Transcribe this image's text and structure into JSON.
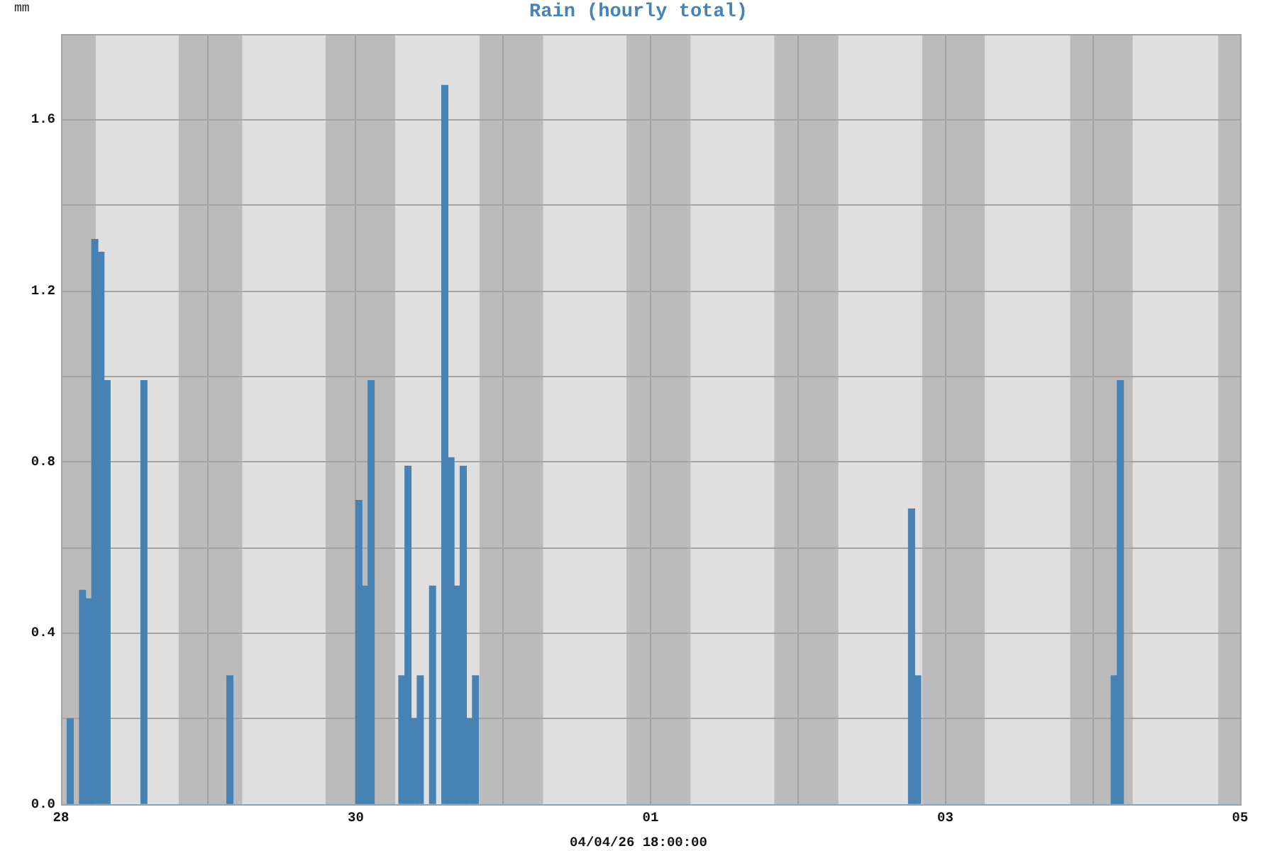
{
  "chart_data": {
    "type": "bar",
    "title": "Rain (hourly total)",
    "ylabel": "mm",
    "xlabel": "04/04/26 18:00:00",
    "x": [
      "--03-28T01:30",
      "--03-28T03:30",
      "--03-28T04:30",
      "--03-28T05:30",
      "--03-28T06:30",
      "--03-28T07:30",
      "--03-28T13:30",
      "--03-29T03:30",
      "--03-30T00:30",
      "--03-30T01:30",
      "--03-30T02:30",
      "--03-30T07:30",
      "--03-30T08:30",
      "--03-30T09:30",
      "--03-30T10:30",
      "--03-30T12:30",
      "--03-30T14:30",
      "--03-30T15:30",
      "--03-30T16:30",
      "--03-30T17:30",
      "--03-30T18:30",
      "--03-30T19:30",
      "--04-02T18:30",
      "--04-02T19:30",
      "--04-04T03:30",
      "--04-04T04:30"
    ],
    "values": [
      0.2,
      0.5,
      0.48,
      1.32,
      1.29,
      0.99,
      0.99,
      0.3,
      0.71,
      0.51,
      0.99,
      0.3,
      0.79,
      0.2,
      0.3,
      0.51,
      1.68,
      0.81,
      0.51,
      0.79,
      0.2,
      0.3,
      0.69,
      0.3,
      0.3,
      0.99
    ],
    "color": "#4682b4",
    "xlim": [
      "--03-28",
      "--04-05"
    ],
    "xticks": [
      {
        "value": "--03-28",
        "label": "28"
      },
      {
        "value": "--03-29",
        "label": null
      },
      {
        "value": "--03-30",
        "label": "30"
      },
      {
        "value": "--03-31",
        "label": null
      },
      {
        "value": "--04-01",
        "label": "01"
      },
      {
        "value": "--04-02",
        "label": null
      },
      {
        "value": "--04-03",
        "label": "03"
      },
      {
        "value": "--04-04",
        "label": null
      },
      {
        "value": "--04-05",
        "label": "05"
      }
    ],
    "ylim": [
      0,
      1.8
    ],
    "yticks": [
      {
        "value": 0,
        "label": "0.0"
      },
      {
        "value": 0.2,
        "label": null
      },
      0.4,
      {
        "value": 0.6,
        "label": null
      },
      0.8,
      {
        "value": 1.0,
        "label": null
      },
      1.2,
      {
        "value": 1.4,
        "label": null
      },
      1.6,
      {
        "value": 1.8,
        "label": null
      }
    ],
    "grid": true,
    "bands": [
      {
        "axis": "x",
        "from": "--03-28T00:00",
        "to": "--03-28T05:40",
        "color": "#bbbbbb"
      },
      {
        "axis": "x",
        "from": "--03-28T19:10",
        "to": "--03-29T05:30",
        "color": "#bbbbbb"
      },
      {
        "axis": "x",
        "from": "--03-29T19:05",
        "to": "--03-30T06:25",
        "color": "#bbbbbb"
      },
      {
        "axis": "x",
        "from": "--03-30T20:10",
        "to": "--03-31T06:30",
        "color": "#bbbbbb"
      },
      {
        "axis": "x",
        "from": "--03-31T20:05",
        "to": "--04-01T06:30",
        "color": "#bbbbbb"
      },
      {
        "axis": "x",
        "from": "--04-01T20:10",
        "to": "--04-02T06:35",
        "color": "#bbbbbb"
      },
      {
        "axis": "x",
        "from": "--04-02T20:15",
        "to": "--04-03T06:25",
        "color": "#bbbbbb"
      },
      {
        "axis": "x",
        "from": "--04-03T20:20",
        "to": "--04-04T06:30",
        "color": "#bbbbbb"
      },
      {
        "axis": "x",
        "from": "--04-04T20:25",
        "to": "--04-05T00:00",
        "color": "#bbbbbb"
      }
    ]
  }
}
